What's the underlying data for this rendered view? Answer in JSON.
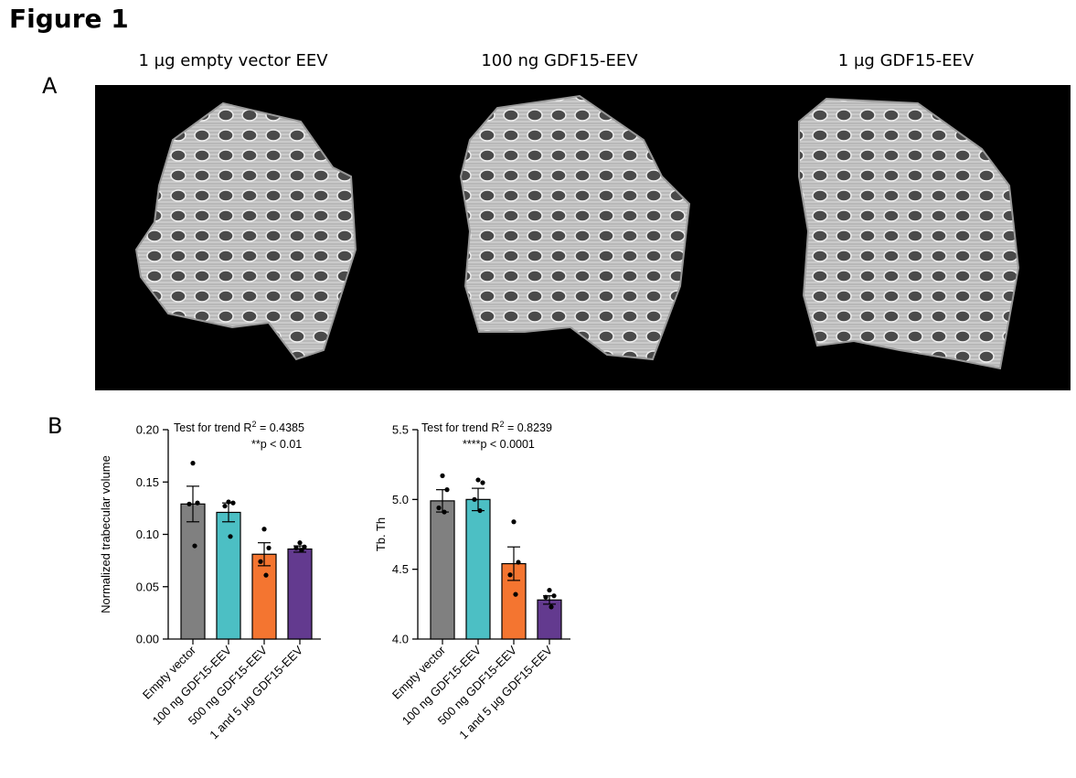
{
  "figure_title": "Figure 1",
  "panel_a": {
    "label": "A",
    "images": [
      {
        "caption": "1 µg empty vector EEV"
      },
      {
        "caption": "100 ng GDF15-EEV"
      },
      {
        "caption": "1 µg GDF15-EEV"
      }
    ]
  },
  "panel_b": {
    "label": "B"
  },
  "colors": {
    "Empty vector": "#808080",
    "100 ng GDF15-EEV": "#4cbfc4",
    "500 ng GDF15-EEV": "#f47530",
    "1 and 5 µg GDF15-EEV": "#633a8f"
  },
  "chart_data": [
    {
      "type": "bar",
      "categories": [
        "Empty vector",
        "100 ng GDF15-EEV",
        "500 ng GDF15-EEV",
        "1 and 5 µg GDF15-EEV"
      ],
      "values": [
        0.129,
        0.121,
        0.081,
        0.086
      ],
      "sem": [
        0.017,
        0.009,
        0.011,
        0.003
      ],
      "points": [
        [
          0.168,
          0.13,
          0.129,
          0.089
        ],
        [
          0.131,
          0.13,
          0.127,
          0.098
        ],
        [
          0.105,
          0.087,
          0.074,
          0.061
        ],
        [
          0.092,
          0.088,
          0.087,
          0.085
        ]
      ],
      "ylabel": "Normalized trabecular volume",
      "ylim": [
        0,
        0.2
      ],
      "yticks": [
        "0.00",
        "0.05",
        "0.10",
        "0.15",
        "0.20"
      ],
      "annotation_line1": "Test for trend R",
      "annotation_sup": "2",
      "annotation_value": " = 0.4385",
      "annotation_line2": "**p < 0.01"
    },
    {
      "type": "bar",
      "categories": [
        "Empty vector",
        "100 ng GDF15-EEV",
        "500 ng GDF15-EEV",
        "1 and 5 µg GDF15-EEV"
      ],
      "values": [
        4.99,
        5.0,
        4.54,
        4.28
      ],
      "sem": [
        0.08,
        0.08,
        0.12,
        0.03
      ],
      "points": [
        [
          5.17,
          5.07,
          4.94,
          4.91
        ],
        [
          5.14,
          5.12,
          5.0,
          4.92
        ],
        [
          4.84,
          4.55,
          4.46,
          4.32
        ],
        [
          4.35,
          4.31,
          4.3,
          4.23
        ]
      ],
      "ylabel": "Tb. Th",
      "ylim": [
        4.0,
        5.5
      ],
      "yticks": [
        "4.0",
        "4.5",
        "5.0",
        "5.5"
      ],
      "annotation_line1": "Test for trend R",
      "annotation_sup": "2",
      "annotation_value": " = 0.8239",
      "annotation_line2": "****p < 0.0001"
    }
  ]
}
